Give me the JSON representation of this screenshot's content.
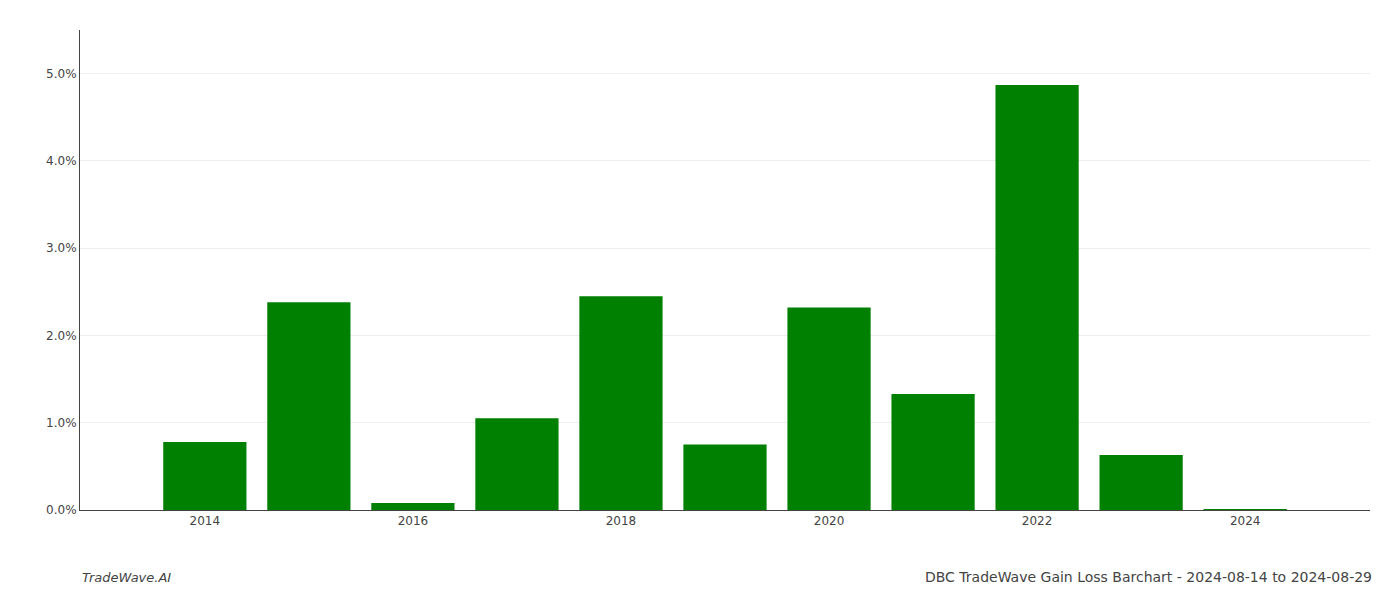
{
  "chart_data": {
    "type": "bar",
    "title": "DBC TradeWave Gain Loss Barchart - 2024-08-14 to 2024-08-29",
    "annotations": [
      "TradeWave.AI"
    ],
    "x": [
      2014,
      2015,
      2016,
      2017,
      2018,
      2019,
      2020,
      2021,
      2022,
      2023,
      2024
    ],
    "values": [
      0.0078,
      0.0238,
      0.0008,
      0.0105,
      0.0245,
      0.0075,
      0.0232,
      0.0133,
      0.0487,
      0.0063,
      0.0001
    ],
    "color": "#008000",
    "xlim": [
      2012.8,
      2025.2
    ],
    "xticks": [
      2014,
      2016,
      2018,
      2020,
      2022,
      2024
    ],
    "ylim": [
      0,
      0.055
    ],
    "yticks": [
      {
        "value": 0.0,
        "label": "0.0%"
      },
      {
        "value": 0.01,
        "label": "1.0%"
      },
      {
        "value": 0.02,
        "label": "2.0%"
      },
      {
        "value": 0.03,
        "label": "3.0%"
      },
      {
        "value": 0.04,
        "label": "4.0%"
      },
      {
        "value": 0.05,
        "label": "5.0%"
      }
    ],
    "grid": true
  }
}
